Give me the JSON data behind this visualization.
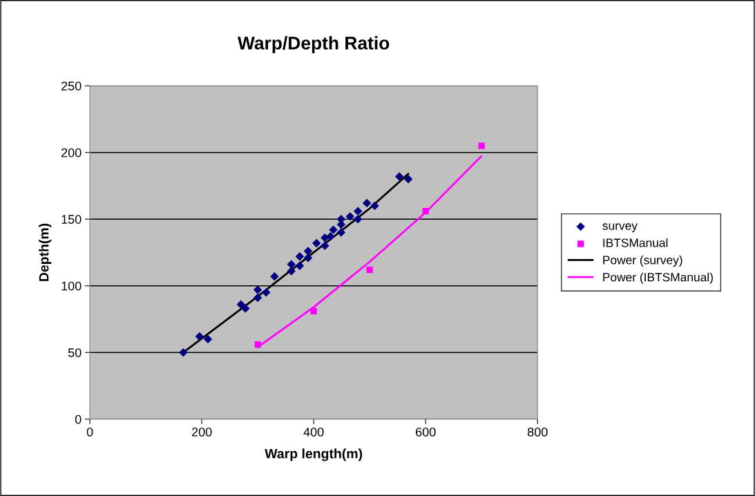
{
  "chart_data": {
    "type": "scatter",
    "title": "Warp/Depth Ratio",
    "xlabel": "Warp length(m)",
    "ylabel": "Depth(m)",
    "xlim": [
      0,
      800
    ],
    "xticks": [
      0,
      200,
      400,
      600,
      800
    ],
    "ylim": [
      0,
      250
    ],
    "yticks": [
      0,
      50,
      100,
      150,
      200,
      250
    ],
    "grid": "y",
    "legend": "right",
    "series": [
      {
        "name": "survey",
        "marker": "diamond",
        "color": "#000080",
        "x": [
          167,
          196,
          211,
          270,
          278,
          300,
          300,
          315,
          330,
          360,
          360,
          375,
          375,
          390,
          390,
          405,
          420,
          420,
          430,
          435,
          449,
          449,
          449,
          465,
          479,
          479,
          495,
          509,
          553,
          569
        ],
        "values": [
          50,
          62,
          60,
          86,
          83,
          97,
          91,
          95,
          107,
          116,
          111,
          122,
          115,
          126,
          121,
          132,
          136,
          130,
          137,
          142,
          150,
          146,
          140,
          152,
          156,
          150,
          162,
          160,
          182,
          180
        ]
      },
      {
        "name": "IBTSManual",
        "marker": "square",
        "color": "#ff00ff",
        "x": [
          300,
          400,
          500,
          600,
          700
        ],
        "values": [
          56,
          81,
          112,
          156,
          205
        ]
      },
      {
        "name": "Power (survey)",
        "type": "line",
        "marker": "none",
        "line_style": "solid",
        "color": "#000000",
        "x": [
          167,
          300,
          400,
          500,
          569
        ],
        "values": [
          50,
          92,
          125,
          158,
          184
        ]
      },
      {
        "name": "Power (IBTSManual)",
        "type": "line",
        "marker": "none",
        "line_style": "solid",
        "color": "#ff00ff",
        "x": [
          300,
          400,
          500,
          600,
          699
        ],
        "values": [
          54,
          84,
          118,
          155,
          197
        ]
      }
    ]
  }
}
